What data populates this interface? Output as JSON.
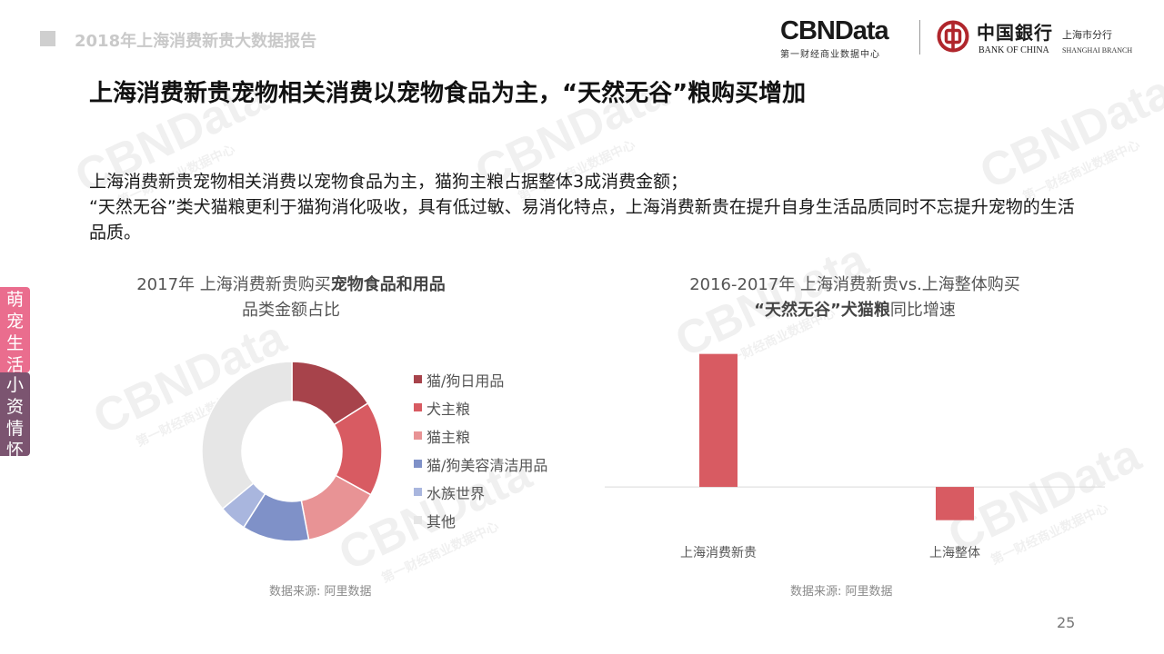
{
  "header": {
    "report_title": "2018年上海消费新贵大数据报告",
    "cbn_logo": "CBNData",
    "cbn_sub": "第一财经商业数据中心",
    "boc_cn": "中国銀行",
    "boc_cn_branch": "上海市分行",
    "boc_en": "BANK OF CHINA",
    "boc_en_branch": "SHANGHAI BRANCH"
  },
  "title": "上海消费新贵宠物相关消费以宠物食品为主，“天然无谷”粮购买增加",
  "summary": {
    "line1": "上海消费新贵宠物相关消费以宠物食品为主，猫狗主粮占据整体3成消费金额；",
    "line2": "“天然无谷”类犬猫粮更利于猫狗消化吸收，具有低过敏、易消化特点，上海消费新贵在提升自身生活品质同时不忘提升宠物的生活品质。"
  },
  "side_tabs": {
    "top": [
      "萌",
      "宠",
      "生",
      "活"
    ],
    "bottom": [
      "小",
      "资",
      "情",
      "怀"
    ]
  },
  "watermark": {
    "main": "CBNData",
    "sub": "第一财经商业数据中心"
  },
  "chart_data": [
    {
      "type": "pie",
      "title_line1_plain": "2017年 上海消费新贵购买",
      "title_line1_bold": "宠物食品和用品",
      "title_line2": "品类金额占比",
      "categories": [
        "猫/狗日用品",
        "犬主粮",
        "猫主粮",
        "猫/狗美容清洁用品",
        "水族世界",
        "其他"
      ],
      "values": [
        16,
        17,
        14,
        12,
        5,
        36
      ],
      "colors": [
        "#a7434b",
        "#d85b62",
        "#e89395",
        "#7f91c8",
        "#a9b6de",
        "#e6e6e6"
      ],
      "donut": true,
      "legend_position": "right"
    },
    {
      "type": "bar",
      "title_line1": "2016-2017年 上海消费新贵vs.上海整体购买",
      "title_line2_bold": "“天然无谷”犬猫粮",
      "title_line2_plain": "同比增速",
      "categories": [
        "上海消费新贵",
        "上海整体"
      ],
      "values": [
        100,
        -25
      ],
      "ylim": [
        -30,
        110
      ],
      "color": "#d85b62",
      "grid": false
    }
  ],
  "sources": {
    "left": "数据来源: 阿里数据",
    "right": "数据来源: 阿里数据"
  },
  "page_number": "25"
}
